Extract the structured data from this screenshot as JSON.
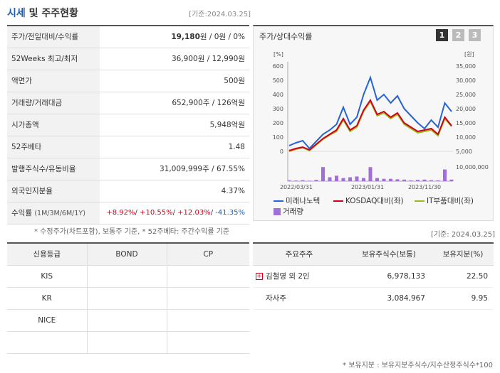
{
  "header": {
    "title_strong": "시세",
    "title_rest": " 및 주주현황",
    "date_ref": "[기준:2024.03.25]"
  },
  "price_rows": [
    {
      "label": "주가/전일대비/수익률",
      "value": ""
    },
    {
      "label": "52Weeks 최고/최저",
      "value": "36,900원 / 12,990원"
    },
    {
      "label": "액면가",
      "value": "500원"
    },
    {
      "label": "거래량/거래대금",
      "value": "652,900주 / 126억원"
    },
    {
      "label": "시가총액",
      "value": "5,948억원"
    },
    {
      "label": "52주베타",
      "value": "1.48"
    },
    {
      "label": "발행주식수/유동비율",
      "value": "31,009,999주 / 67.55%"
    },
    {
      "label": "외국인지분율",
      "value": "4.37%"
    },
    {
      "label": "수익률",
      "label_sub": "(1M/3M/6M/1Y)",
      "value": ""
    }
  ],
  "price_main": {
    "price": "19,180",
    "rest": "원 / 0원 / 0%"
  },
  "returns": {
    "r1": "+8.92%",
    "r2": "+10.55%",
    "r3": "+12.03%",
    "r4": "-41.35%",
    "sep": "/ "
  },
  "note1": "* 수정주가(차트포함), 보통주 기준, * 52주베타: 주간수익률 기준",
  "chart_panel": {
    "title": "주가/상대수익률",
    "pages": [
      "1",
      "2",
      "3"
    ],
    "left_unit": "[%]",
    "right_unit": "[원]"
  },
  "chart_data": {
    "type": "line",
    "x_ticks": [
      "2022/03/31",
      "2023/01/31",
      "2023/11/30"
    ],
    "y_left_ticks": [
      "600",
      "500",
      "400",
      "300",
      "200",
      "100",
      "0"
    ],
    "y_right_ticks": [
      "35,000",
      "30,000",
      "25,000",
      "20,000",
      "15,000",
      "10,000",
      "5,000"
    ],
    "y_volume_tick": "10,000,000",
    "ylim_left": [
      0,
      600
    ],
    "x_index": [
      0,
      1,
      2,
      3,
      4,
      5,
      6,
      7,
      8,
      9,
      10,
      11,
      12,
      13,
      14,
      15,
      16,
      17,
      18,
      19,
      20,
      21,
      22,
      23,
      24
    ],
    "series": [
      {
        "name": "미래나노텍",
        "color": "#2563d8",
        "values": [
          40,
          60,
          75,
          20,
          70,
          120,
          150,
          190,
          310,
          190,
          240,
          400,
          520,
          360,
          400,
          340,
          390,
          300,
          250,
          200,
          160,
          220,
          170,
          340,
          280
        ]
      },
      {
        "name": "KOSDAQ대비(좌)",
        "color": "#d0021b",
        "values": [
          5,
          20,
          30,
          10,
          50,
          90,
          120,
          150,
          230,
          150,
          180,
          290,
          360,
          260,
          280,
          240,
          270,
          200,
          170,
          140,
          150,
          160,
          120,
          240,
          180
        ]
      },
      {
        "name": "IT부품대비(좌)",
        "color": "#9aba1c",
        "values": [
          0,
          15,
          25,
          5,
          45,
          85,
          115,
          140,
          220,
          140,
          170,
          280,
          350,
          250,
          270,
          230,
          260,
          190,
          160,
          130,
          140,
          150,
          110,
          230,
          175
        ]
      }
    ],
    "volume": {
      "name": "거래량",
      "color": "#a070d8",
      "values": [
        0.05,
        0.04,
        0.06,
        0.03,
        0.08,
        0.9,
        0.25,
        0.35,
        0.2,
        0.25,
        0.3,
        0.2,
        0.9,
        0.2,
        0.15,
        0.15,
        0.12,
        0.1,
        0.05,
        0.08,
        0.1,
        0.06,
        0.05,
        0.75,
        0.1
      ]
    }
  },
  "ref2": "[기준: 2024.03.25]",
  "credit": {
    "headers": [
      "신용등급",
      "BOND",
      "CP"
    ],
    "rows": [
      [
        "KIS",
        "",
        ""
      ],
      [
        "KR",
        "",
        ""
      ],
      [
        "NICE",
        "",
        ""
      ],
      [
        "",
        "",
        ""
      ]
    ]
  },
  "holders": {
    "headers": [
      "주요주주",
      "보유주식수(보통)",
      "보유지분(%)"
    ],
    "rows": [
      {
        "name": "김철영 외 2인",
        "shares": "6,978,133",
        "pct": "22.50",
        "expand": "+"
      },
      {
        "name": "자사주",
        "shares": "3,084,967",
        "pct": "9.95",
        "expand": ""
      }
    ]
  },
  "note2": "* 보유지분 : 보유지분주식수/지수산정주식수*100"
}
